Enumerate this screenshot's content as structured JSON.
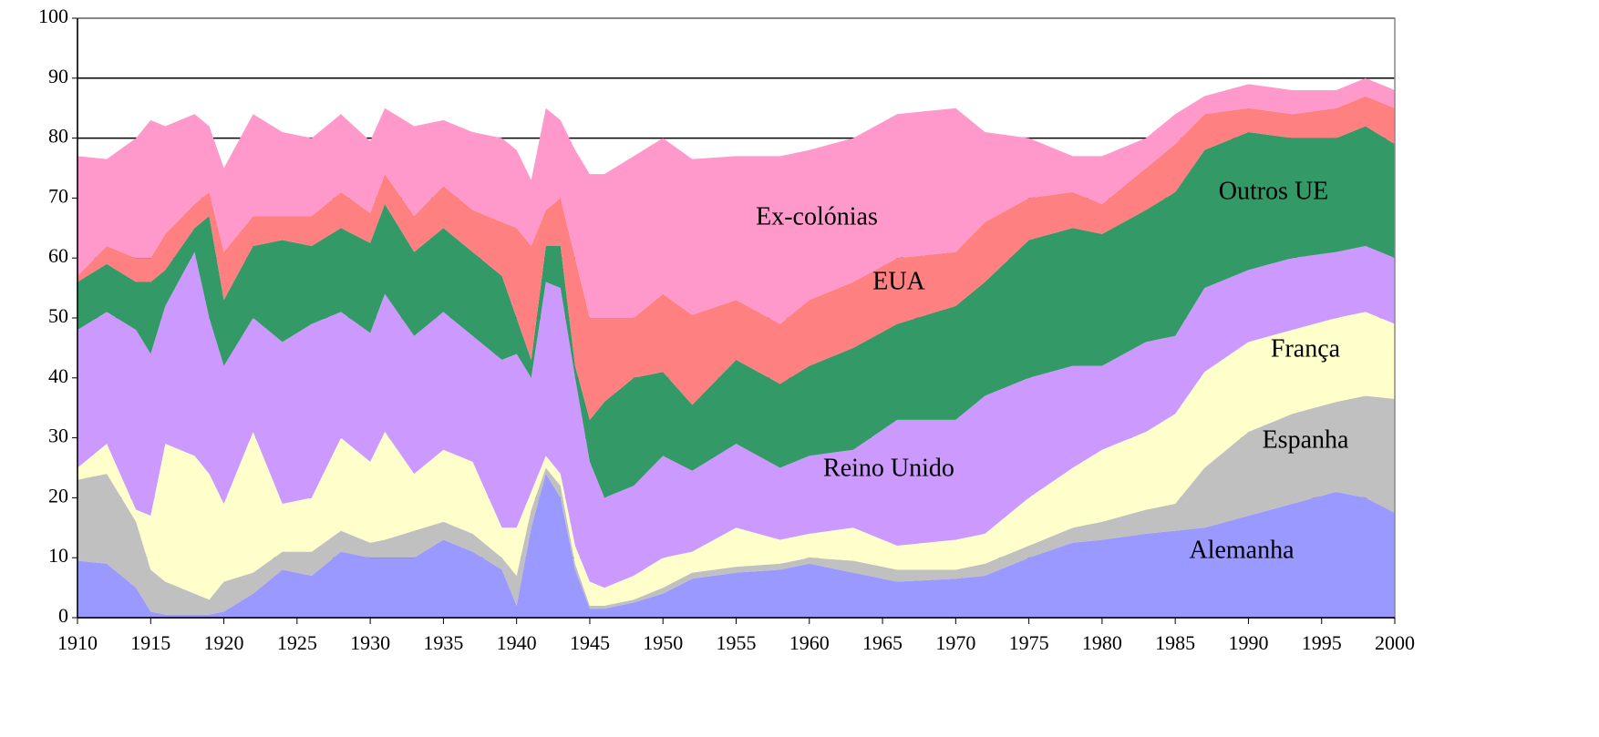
{
  "chart_data": {
    "type": "stacked_area",
    "x": [
      1910,
      1912,
      1914,
      1915,
      1916,
      1918,
      1919,
      1920,
      1922,
      1924,
      1926,
      1928,
      1930,
      1931,
      1933,
      1935,
      1937,
      1939,
      1940,
      1941,
      1942,
      1943,
      1944,
      1945,
      1946,
      1948,
      1950,
      1952,
      1955,
      1958,
      1960,
      1963,
      1966,
      1970,
      1972,
      1975,
      1978,
      1980,
      1983,
      1985,
      1987,
      1990,
      1993,
      1996,
      1998,
      2000
    ],
    "series": [
      {
        "name": "Alemanha",
        "color": "#9999ff",
        "values": [
          9.5,
          9,
          5,
          1,
          0.5,
          0.5,
          0.5,
          1,
          4,
          8,
          7,
          11,
          10,
          10,
          10,
          13,
          11,
          8,
          2,
          15,
          24,
          20,
          8,
          1.5,
          1.5,
          2.5,
          4,
          6.5,
          7.5,
          8,
          9,
          7.5,
          6,
          6.5,
          7,
          10,
          12.5,
          13,
          14,
          14.5,
          15,
          17,
          19,
          21,
          20,
          17.5
        ]
      },
      {
        "name": "Espanha",
        "color": "#c0c0c0",
        "values": [
          13.5,
          15,
          11,
          7,
          5.5,
          3.5,
          2.5,
          5,
          3.5,
          3,
          4,
          3.5,
          2.5,
          3,
          4.5,
          3,
          3,
          2,
          5,
          3,
          1,
          2,
          1,
          0.5,
          0.5,
          0.5,
          1,
          1,
          1,
          1,
          1,
          2,
          2,
          1.5,
          2,
          2,
          2.5,
          3,
          4,
          4.5,
          10,
          14,
          15,
          15,
          17,
          19
        ]
      },
      {
        "name": "França",
        "color": "#ffffcc",
        "values": [
          2,
          5,
          2,
          9,
          23,
          23,
          21,
          13,
          23.5,
          8,
          9,
          15.5,
          13.5,
          18,
          9.5,
          12,
          12,
          5,
          8,
          3,
          2,
          2,
          3,
          4,
          3,
          4,
          5,
          3.5,
          6.5,
          4,
          4,
          5.5,
          4,
          5,
          5,
          8,
          10,
          12,
          13,
          15,
          16,
          15,
          14,
          14,
          14,
          12.5
        ]
      },
      {
        "name": "Reino Unido",
        "color": "#cc99ff",
        "values": [
          23,
          22,
          30,
          27,
          23,
          34,
          26,
          23,
          19,
          27,
          29,
          21,
          21.5,
          23,
          23,
          23,
          21,
          28,
          29,
          19,
          29,
          31,
          28,
          20,
          15,
          15,
          17,
          13.5,
          14,
          12,
          13,
          13,
          21,
          20,
          23,
          20,
          17,
          14,
          15,
          13,
          14,
          12,
          12,
          11,
          11,
          11
        ]
      },
      {
        "name": "Outros UE",
        "color": "#339966",
        "values": [
          8,
          8,
          8,
          12,
          6,
          4,
          17,
          11,
          12,
          17,
          13,
          14,
          15,
          15,
          14,
          14,
          14,
          14,
          6,
          3,
          6,
          7,
          2,
          7,
          16,
          18,
          14,
          11,
          14,
          14,
          15,
          17,
          16,
          19,
          19,
          23,
          23,
          22,
          22,
          24,
          23,
          23,
          20,
          19,
          20,
          19
        ]
      },
      {
        "name": "EUA",
        "color": "#ff8080",
        "values": [
          1,
          3,
          4,
          4,
          6,
          4,
          4,
          8,
          5,
          4,
          5,
          6,
          5,
          5,
          6,
          7,
          7,
          9,
          15,
          19,
          6,
          8,
          18,
          17,
          14,
          10,
          13,
          15,
          10,
          10,
          11,
          11,
          11,
          9,
          10,
          7,
          6,
          5,
          7,
          8,
          6,
          4,
          4,
          5,
          5,
          6
        ]
      },
      {
        "name": "Ex-colónias",
        "color": "#ff99cc",
        "values": [
          20,
          14.5,
          20,
          23,
          18,
          15,
          11,
          14,
          17,
          14,
          13,
          13,
          12,
          11,
          15,
          11,
          13,
          14,
          13,
          11,
          17,
          13,
          18,
          24,
          24,
          27,
          26,
          26,
          24,
          28,
          25,
          24,
          24,
          24,
          15,
          10,
          6,
          8,
          5,
          5,
          3,
          4,
          4,
          3,
          3,
          3
        ]
      }
    ],
    "xlim": [
      1910,
      2000
    ],
    "xticks": [
      1910,
      1915,
      1920,
      1925,
      1930,
      1935,
      1940,
      1945,
      1950,
      1955,
      1960,
      1965,
      1970,
      1975,
      1980,
      1985,
      1990,
      1995,
      2000
    ],
    "ylim": [
      0,
      100
    ],
    "yticks": [
      0,
      10,
      20,
      30,
      40,
      50,
      60,
      70,
      80,
      90,
      100
    ],
    "grid": true
  }
}
